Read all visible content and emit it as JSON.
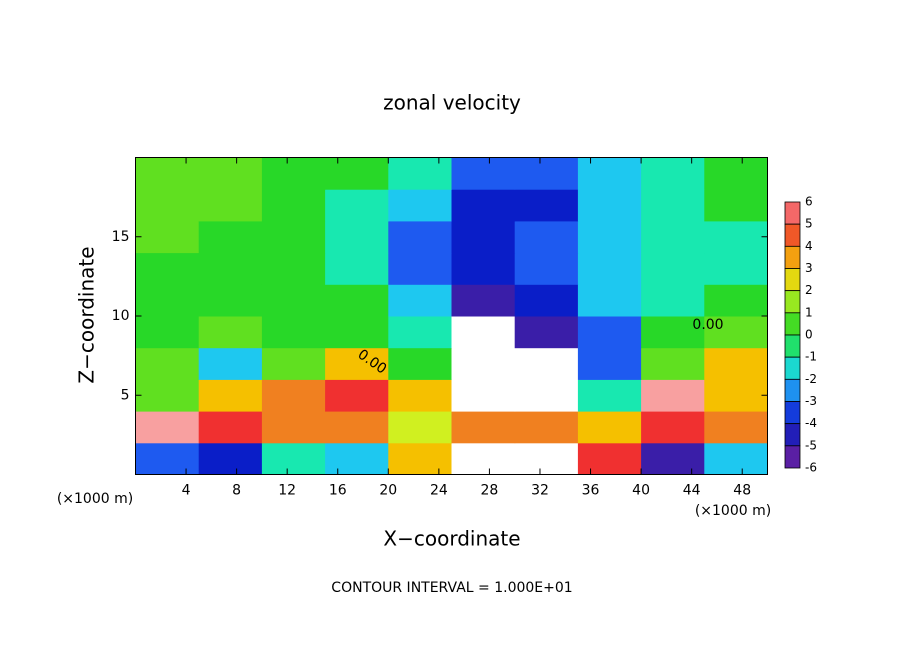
{
  "chart_data": {
    "type": "heatmap",
    "title": "zonal velocity",
    "x_label": "X−coordinate",
    "y_label": "Z−coordinate",
    "x_unit": "(×1000 m)",
    "footer": "CONTOUR INTERVAL = 1.000E+01",
    "annotations": [
      "0.00",
      "0.00"
    ],
    "x": [
      2.5,
      7.5,
      12.5,
      17.5,
      22.5,
      27.5,
      32.5,
      37.5,
      42.5,
      47.5
    ],
    "z": [
      1,
      3,
      5,
      7,
      9,
      11,
      13,
      15,
      17,
      19
    ],
    "values": [
      [
        -3,
        -4,
        -1,
        -2,
        3,
        8,
        8,
        5,
        -5,
        -2
      ],
      [
        6,
        5,
        4,
        4,
        2,
        4,
        4,
        3,
        5,
        4
      ],
      [
        1,
        3,
        4,
        5,
        3,
        -8,
        -7,
        -1,
        6,
        3
      ],
      [
        1,
        -2,
        1,
        3,
        0,
        -9,
        -8,
        -3,
        1,
        3
      ],
      [
        0,
        1,
        0,
        0,
        -1,
        -7,
        -5,
        -3,
        0,
        1
      ],
      [
        0,
        0,
        0,
        0,
        -2,
        -5,
        -4,
        -2,
        -1,
        0
      ],
      [
        0,
        0,
        0,
        -1,
        -3,
        -4,
        -3,
        -2,
        -1,
        -1
      ],
      [
        1,
        0,
        0,
        -1,
        -3,
        -4,
        -3,
        -2,
        -1,
        -1
      ],
      [
        1,
        1,
        0,
        -1,
        -2,
        -4,
        -4,
        -2,
        -1,
        0
      ],
      [
        1,
        1,
        0,
        0,
        -1,
        -3,
        -3,
        -2,
        -1,
        0
      ]
    ],
    "xlim": [
      0,
      50
    ],
    "ylim": [
      0,
      20
    ],
    "xticks": [
      4,
      8,
      12,
      16,
      20,
      24,
      28,
      32,
      36,
      40,
      44,
      48
    ],
    "yticks": [
      5,
      10,
      15
    ],
    "clim": [
      -6,
      6
    ],
    "cticks": [
      6,
      5,
      4,
      3,
      2,
      1,
      0,
      -1,
      -2,
      -3,
      -4,
      -5,
      -6
    ],
    "colorscale": [
      "#7a1fa0",
      "#3a1ea8",
      "#0a1ec8",
      "#1e5af0",
      "#1ec8f0",
      "#18e8b0",
      "#28d828",
      "#60e020",
      "#d0f020",
      "#f5c000",
      "#f08020",
      "#f03030",
      "#f8a0a0"
    ],
    "out_of_range_color": "#ffffff"
  }
}
